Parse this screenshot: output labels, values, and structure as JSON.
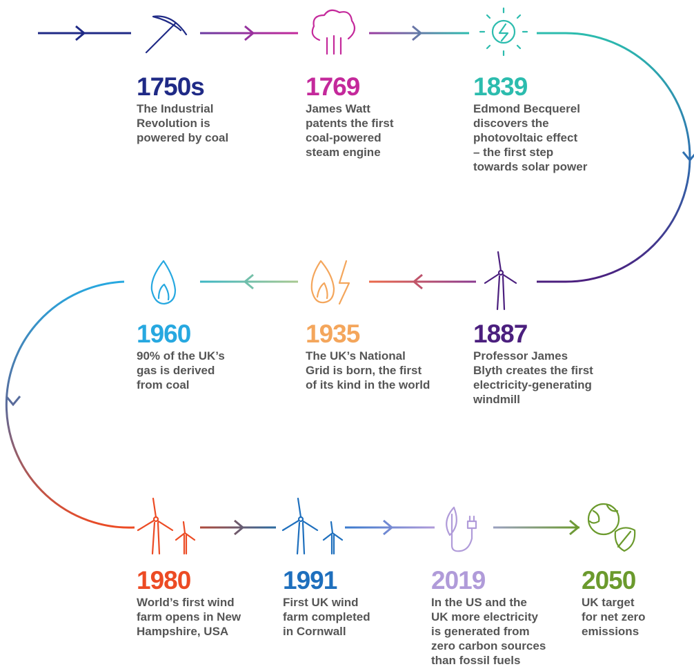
{
  "events": [
    {
      "year": "1750s",
      "color": "#1f2a86",
      "lines": [
        "The Industrial",
        "Revolution is",
        "powered by coal"
      ]
    },
    {
      "year": "1769",
      "color": "#c4299b",
      "lines": [
        "James Watt",
        "patents the first",
        "coal-powered",
        "steam engine"
      ]
    },
    {
      "year": "1839",
      "color": "#2cbcae",
      "lines": [
        "Edmond Becquerel",
        "discovers the",
        "photovoltaic effect",
        "– the first step",
        "towards solar power"
      ]
    },
    {
      "year": "1887",
      "color": "#4b1f7e",
      "lines": [
        "Professor James",
        "Blyth creates the first",
        "electricity-generating",
        "windmill"
      ]
    },
    {
      "year": "1935",
      "color": "#f4a65c",
      "lines": [
        "The UK’s National",
        "Grid is born, the first",
        "of its kind in the world"
      ]
    },
    {
      "year": "1960",
      "color": "#27a8e0",
      "lines": [
        "90% of the UK’s",
        "gas is derived",
        "from coal"
      ]
    },
    {
      "year": "1980",
      "color": "#ec4b24",
      "lines": [
        "World’s first wind",
        "farm opens in New",
        "Hampshire, USA"
      ]
    },
    {
      "year": "1991",
      "color": "#1e6fbd",
      "lines": [
        "First UK wind",
        "farm completed",
        "in Cornwall"
      ]
    },
    {
      "year": "2019",
      "color": "#b09bd9",
      "lines": [
        "In the US and the",
        "UK more electricity",
        "is generated from",
        "zero carbon sources",
        "than fossil fuels"
      ]
    },
    {
      "year": "2050",
      "color": "#6b9a2d",
      "lines": [
        "UK target",
        "for net zero",
        "emissions"
      ]
    }
  ]
}
